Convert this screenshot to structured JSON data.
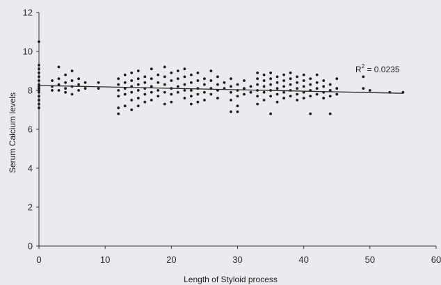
{
  "chart_data": {
    "type": "scatter",
    "xlabel": "Length of Styloid process",
    "ylabel": "Serum Calcium levels",
    "xlim": [
      0,
      60
    ],
    "ylim": [
      0,
      12
    ],
    "x_ticks": [
      "0",
      "10",
      "20",
      "30",
      "40",
      "50",
      "60"
    ],
    "y_ticks": [
      "0",
      "2",
      "4",
      "6",
      "8",
      "10",
      "12"
    ],
    "annotation": {
      "base": "R",
      "sup": "2",
      "rest": " = 0.0235"
    },
    "trendline": {
      "x": [
        0,
        55
      ],
      "y": [
        8.25,
        7.85
      ]
    },
    "points": [
      [
        0,
        10.5
      ],
      [
        0,
        9.3
      ],
      [
        0,
        9.1
      ],
      [
        0,
        8.9
      ],
      [
        0,
        8.7
      ],
      [
        0,
        8.5
      ],
      [
        0,
        8.3
      ],
      [
        0,
        8.2
      ],
      [
        0,
        8.1
      ],
      [
        0,
        8.0
      ],
      [
        0,
        7.9
      ],
      [
        0,
        7.7
      ],
      [
        0,
        7.5
      ],
      [
        0,
        7.3
      ],
      [
        0,
        7.1
      ],
      [
        2,
        8.5
      ],
      [
        2,
        8.2
      ],
      [
        2,
        8.0
      ],
      [
        3,
        9.2
      ],
      [
        3,
        8.6
      ],
      [
        3,
        8.3
      ],
      [
        3,
        8.0
      ],
      [
        4,
        8.8
      ],
      [
        4,
        8.4
      ],
      [
        4,
        8.1
      ],
      [
        4,
        7.9
      ],
      [
        5,
        9.0
      ],
      [
        5,
        8.5
      ],
      [
        5,
        8.2
      ],
      [
        5,
        7.8
      ],
      [
        6,
        8.6
      ],
      [
        6,
        8.3
      ],
      [
        6,
        8.0
      ],
      [
        7,
        8.4
      ],
      [
        7,
        8.1
      ],
      [
        9,
        8.4
      ],
      [
        9,
        8.1
      ],
      [
        12,
        8.6
      ],
      [
        12,
        8.3
      ],
      [
        12,
        8.0
      ],
      [
        12,
        7.7
      ],
      [
        12,
        7.1
      ],
      [
        12,
        6.8
      ],
      [
        13,
        8.8
      ],
      [
        13,
        8.4
      ],
      [
        13,
        8.1
      ],
      [
        13,
        7.8
      ],
      [
        13,
        7.2
      ],
      [
        14,
        8.9
      ],
      [
        14,
        8.5
      ],
      [
        14,
        8.2
      ],
      [
        14,
        7.9
      ],
      [
        14,
        7.5
      ],
      [
        14,
        7.0
      ],
      [
        15,
        9.0
      ],
      [
        15,
        8.6
      ],
      [
        15,
        8.3
      ],
      [
        15,
        8.0
      ],
      [
        15,
        7.6
      ],
      [
        15,
        7.2
      ],
      [
        16,
        8.7
      ],
      [
        16,
        8.4
      ],
      [
        16,
        8.1
      ],
      [
        16,
        7.8
      ],
      [
        16,
        7.4
      ],
      [
        17,
        9.1
      ],
      [
        17,
        8.6
      ],
      [
        17,
        8.2
      ],
      [
        17,
        7.9
      ],
      [
        17,
        7.5
      ],
      [
        18,
        8.8
      ],
      [
        18,
        8.4
      ],
      [
        18,
        8.0
      ],
      [
        18,
        7.7
      ],
      [
        19,
        9.2
      ],
      [
        19,
        8.7
      ],
      [
        19,
        8.3
      ],
      [
        19,
        7.9
      ],
      [
        19,
        7.3
      ],
      [
        20,
        8.9
      ],
      [
        20,
        8.5
      ],
      [
        20,
        8.1
      ],
      [
        20,
        7.8
      ],
      [
        20,
        7.4
      ],
      [
        21,
        9.0
      ],
      [
        21,
        8.6
      ],
      [
        21,
        8.2
      ],
      [
        21,
        7.9
      ],
      [
        22,
        9.1
      ],
      [
        22,
        8.7
      ],
      [
        22,
        8.3
      ],
      [
        22,
        8.0
      ],
      [
        22,
        7.6
      ],
      [
        23,
        8.8
      ],
      [
        23,
        8.4
      ],
      [
        23,
        8.0
      ],
      [
        23,
        7.7
      ],
      [
        23,
        7.3
      ],
      [
        24,
        8.9
      ],
      [
        24,
        8.5
      ],
      [
        24,
        8.1
      ],
      [
        24,
        7.8
      ],
      [
        24,
        7.4
      ],
      [
        25,
        8.6
      ],
      [
        25,
        8.3
      ],
      [
        25,
        7.9
      ],
      [
        25,
        7.5
      ],
      [
        26,
        9.0
      ],
      [
        26,
        8.5
      ],
      [
        26,
        8.1
      ],
      [
        26,
        7.8
      ],
      [
        27,
        8.7
      ],
      [
        27,
        8.3
      ],
      [
        27,
        8.0
      ],
      [
        27,
        7.6
      ],
      [
        28,
        8.4
      ],
      [
        28,
        8.1
      ],
      [
        29,
        8.6
      ],
      [
        29,
        8.2
      ],
      [
        29,
        7.9
      ],
      [
        29,
        7.5
      ],
      [
        29,
        6.9
      ],
      [
        30,
        8.3
      ],
      [
        30,
        8.0
      ],
      [
        30,
        7.7
      ],
      [
        30,
        7.2
      ],
      [
        30,
        6.9
      ],
      [
        31,
        8.5
      ],
      [
        31,
        8.1
      ],
      [
        31,
        7.8
      ],
      [
        32,
        8.2
      ],
      [
        32,
        7.9
      ],
      [
        33,
        8.9
      ],
      [
        33,
        8.6
      ],
      [
        33,
        8.3
      ],
      [
        33,
        8.0
      ],
      [
        33,
        7.7
      ],
      [
        33,
        7.3
      ],
      [
        34,
        8.8
      ],
      [
        34,
        8.5
      ],
      [
        34,
        8.2
      ],
      [
        34,
        7.9
      ],
      [
        34,
        7.5
      ],
      [
        35,
        8.9
      ],
      [
        35,
        8.6
      ],
      [
        35,
        8.3
      ],
      [
        35,
        8.0
      ],
      [
        35,
        7.7
      ],
      [
        35,
        6.8
      ],
      [
        36,
        8.7
      ],
      [
        36,
        8.4
      ],
      [
        36,
        8.1
      ],
      [
        36,
        7.8
      ],
      [
        36,
        7.4
      ],
      [
        37,
        8.8
      ],
      [
        37,
        8.5
      ],
      [
        37,
        8.2
      ],
      [
        37,
        7.9
      ],
      [
        37,
        7.6
      ],
      [
        38,
        8.9
      ],
      [
        38,
        8.6
      ],
      [
        38,
        8.3
      ],
      [
        38,
        8.0
      ],
      [
        38,
        7.7
      ],
      [
        39,
        8.7
      ],
      [
        39,
        8.4
      ],
      [
        39,
        8.1
      ],
      [
        39,
        7.8
      ],
      [
        39,
        7.5
      ],
      [
        40,
        8.8
      ],
      [
        40,
        8.5
      ],
      [
        40,
        8.2
      ],
      [
        40,
        7.9
      ],
      [
        40,
        7.6
      ],
      [
        41,
        8.6
      ],
      [
        41,
        8.3
      ],
      [
        41,
        8.0
      ],
      [
        41,
        7.7
      ],
      [
        41,
        6.8
      ],
      [
        42,
        8.8
      ],
      [
        42,
        8.4
      ],
      [
        42,
        8.1
      ],
      [
        42,
        7.8
      ],
      [
        43,
        8.5
      ],
      [
        43,
        8.2
      ],
      [
        43,
        7.9
      ],
      [
        43,
        7.6
      ],
      [
        44,
        8.3
      ],
      [
        44,
        8.0
      ],
      [
        44,
        7.7
      ],
      [
        44,
        6.8
      ],
      [
        45,
        8.6
      ],
      [
        45,
        8.1
      ],
      [
        45,
        7.8
      ],
      [
        49,
        8.7
      ],
      [
        49,
        8.1
      ],
      [
        50,
        8.0
      ],
      [
        53,
        7.9
      ],
      [
        55,
        7.9
      ]
    ]
  }
}
